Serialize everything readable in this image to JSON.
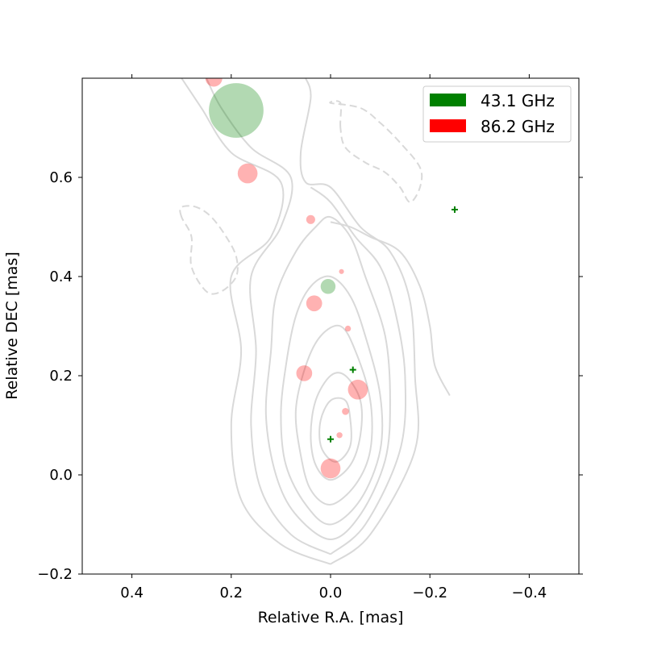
{
  "chart_data": {
    "type": "scatter",
    "title": "",
    "xlabel": "Relative R.A. [mas]",
    "ylabel": "Relative DEC [mas]",
    "xlim": [
      0.5,
      -0.5
    ],
    "ylim": [
      -0.2,
      0.8
    ],
    "xticks": [
      0.4,
      0.2,
      0.0,
      -0.2,
      -0.4
    ],
    "xtick_labels": [
      "0.4",
      "0.2",
      "0.0",
      "−0.2",
      "−0.4"
    ],
    "yticks": [
      -0.2,
      0.0,
      0.2,
      0.4,
      0.6
    ],
    "ytick_labels": [
      "−0.2",
      "0.0",
      "0.2",
      "0.4",
      "0.6"
    ],
    "grid": false,
    "legend_position": "top-right",
    "series": [
      {
        "name": "43.1 GHz",
        "color": "#008000",
        "points": [
          {
            "x": 0.19,
            "y": 0.735,
            "r": 0.055
          },
          {
            "x": 0.005,
            "y": 0.38,
            "r": 0.015
          },
          {
            "x": -0.045,
            "y": 0.212,
            "r": 0,
            "marker": "cross"
          },
          {
            "x": -0.25,
            "y": 0.535,
            "r": 0,
            "marker": "cross"
          },
          {
            "x": 0.0,
            "y": 0.072,
            "r": 0,
            "marker": "cross"
          }
        ]
      },
      {
        "name": "86.2 GHz",
        "color": "#ff0000",
        "points": [
          {
            "x": 0.235,
            "y": 0.8,
            "r": 0.017
          },
          {
            "x": 0.167,
            "y": 0.608,
            "r": 0.02
          },
          {
            "x": 0.04,
            "y": 0.515,
            "r": 0.009
          },
          {
            "x": -0.022,
            "y": 0.41,
            "r": 0.005
          },
          {
            "x": 0.033,
            "y": 0.346,
            "r": 0.016
          },
          {
            "x": -0.035,
            "y": 0.295,
            "r": 0.006
          },
          {
            "x": 0.053,
            "y": 0.205,
            "r": 0.016
          },
          {
            "x": -0.055,
            "y": 0.172,
            "r": 0.02
          },
          {
            "x": -0.03,
            "y": 0.128,
            "r": 0.007
          },
          {
            "x": -0.018,
            "y": 0.08,
            "r": 0.006
          },
          {
            "x": 0.0,
            "y": 0.013,
            "r": 0.02
          }
        ]
      }
    ],
    "contours": {
      "color": "#d9d9d9",
      "solid": [
        [
          [
            0.0,
            -0.18
          ],
          [
            0.1,
            -0.14
          ],
          [
            0.18,
            -0.05
          ],
          [
            0.2,
            0.1
          ],
          [
            0.18,
            0.25
          ],
          [
            0.2,
            0.4
          ],
          [
            0.12,
            0.48
          ],
          [
            0.1,
            0.59
          ],
          [
            0.2,
            0.65
          ],
          [
            0.26,
            0.74
          ],
          [
            0.3,
            0.8
          ]
        ],
        [
          [
            0.0,
            -0.18
          ],
          [
            -0.08,
            -0.12
          ],
          [
            -0.17,
            0.05
          ],
          [
            -0.17,
            0.2
          ],
          [
            -0.16,
            0.35
          ],
          [
            -0.12,
            0.45
          ],
          [
            -0.06,
            0.5
          ],
          [
            0.0,
            0.58
          ],
          [
            0.05,
            0.59
          ],
          [
            0.06,
            0.65
          ],
          [
            0.04,
            0.76
          ],
          [
            0.05,
            0.8
          ]
        ],
        [
          [
            0.0,
            -0.16
          ],
          [
            0.08,
            -0.12
          ],
          [
            0.14,
            -0.03
          ],
          [
            0.16,
            0.1
          ],
          [
            0.15,
            0.25
          ],
          [
            0.16,
            0.4
          ],
          [
            0.1,
            0.5
          ],
          [
            0.08,
            0.6
          ],
          [
            0.16,
            0.66
          ],
          [
            0.22,
            0.74
          ],
          [
            0.25,
            0.8
          ]
        ],
        [
          [
            0.0,
            -0.16
          ],
          [
            -0.07,
            -0.1
          ],
          [
            -0.14,
            0.05
          ],
          [
            -0.15,
            0.2
          ],
          [
            -0.13,
            0.33
          ],
          [
            -0.1,
            0.42
          ],
          [
            -0.05,
            0.48
          ],
          [
            0.0,
            0.55
          ],
          [
            0.04,
            0.58
          ]
        ],
        [
          [
            0.0,
            -0.13
          ],
          [
            0.07,
            -0.08
          ],
          [
            0.11,
            0.0
          ],
          [
            0.13,
            0.12
          ],
          [
            0.12,
            0.25
          ],
          [
            0.11,
            0.36
          ],
          [
            0.07,
            0.45
          ],
          [
            0.03,
            0.5
          ],
          [
            0.0,
            0.52
          ],
          [
            -0.04,
            0.48
          ],
          [
            -0.07,
            0.4
          ],
          [
            -0.11,
            0.28
          ],
          [
            -0.12,
            0.15
          ],
          [
            -0.11,
            0.03
          ],
          [
            -0.06,
            -0.08
          ],
          [
            0.0,
            -0.13
          ]
        ],
        [
          [
            0.0,
            -0.1
          ],
          [
            0.05,
            -0.06
          ],
          [
            0.09,
            0.02
          ],
          [
            0.1,
            0.12
          ],
          [
            0.09,
            0.22
          ],
          [
            0.07,
            0.32
          ],
          [
            0.04,
            0.38
          ],
          [
            0.0,
            0.4
          ],
          [
            -0.04,
            0.36
          ],
          [
            -0.07,
            0.28
          ],
          [
            -0.1,
            0.16
          ],
          [
            -0.1,
            0.05
          ],
          [
            -0.06,
            -0.05
          ],
          [
            0.0,
            -0.1
          ]
        ],
        [
          [
            0.0,
            -0.06
          ],
          [
            0.04,
            -0.03
          ],
          [
            0.06,
            0.04
          ],
          [
            0.07,
            0.13
          ],
          [
            0.05,
            0.22
          ],
          [
            0.02,
            0.28
          ],
          [
            -0.02,
            0.3
          ],
          [
            -0.05,
            0.25
          ],
          [
            -0.08,
            0.15
          ],
          [
            -0.08,
            0.05
          ],
          [
            -0.05,
            -0.02
          ],
          [
            0.0,
            -0.06
          ]
        ],
        [
          [
            0.0,
            -0.01
          ],
          [
            0.03,
            0.02
          ],
          [
            0.04,
            0.08
          ],
          [
            0.03,
            0.15
          ],
          [
            0.0,
            0.2
          ],
          [
            -0.03,
            0.2
          ],
          [
            -0.06,
            0.15
          ],
          [
            -0.06,
            0.08
          ],
          [
            -0.04,
            0.02
          ],
          [
            0.0,
            -0.01
          ]
        ],
        [
          [
            0.0,
            0.03
          ],
          [
            0.02,
            0.06
          ],
          [
            0.02,
            0.11
          ],
          [
            0.0,
            0.15
          ],
          [
            -0.03,
            0.15
          ],
          [
            -0.04,
            0.11
          ],
          [
            -0.04,
            0.06
          ],
          [
            -0.02,
            0.03
          ],
          [
            0.0,
            0.03
          ]
        ],
        [
          [
            0.0,
            0.51
          ],
          [
            -0.04,
            0.5
          ],
          [
            -0.08,
            0.48
          ],
          [
            -0.14,
            0.45
          ],
          [
            -0.18,
            0.38
          ],
          [
            -0.2,
            0.3
          ],
          [
            -0.21,
            0.22
          ],
          [
            -0.24,
            0.16
          ]
        ]
      ],
      "dashed": [
        [
          [
            0.3,
            0.52
          ],
          [
            0.3,
            0.54
          ],
          [
            0.27,
            0.54
          ],
          [
            0.24,
            0.52
          ],
          [
            0.21,
            0.48
          ],
          [
            0.19,
            0.44
          ],
          [
            0.19,
            0.4
          ],
          [
            0.22,
            0.37
          ],
          [
            0.25,
            0.37
          ],
          [
            0.28,
            0.42
          ],
          [
            0.28,
            0.48
          ],
          [
            0.3,
            0.52
          ]
        ],
        [
          [
            -0.02,
            0.7
          ],
          [
            -0.02,
            0.75
          ],
          [
            0.0,
            0.75
          ],
          [
            -0.06,
            0.74
          ],
          [
            -0.1,
            0.71
          ],
          [
            -0.14,
            0.67
          ],
          [
            -0.18,
            0.62
          ],
          [
            -0.18,
            0.58
          ],
          [
            -0.16,
            0.55
          ],
          [
            -0.14,
            0.58
          ],
          [
            -0.11,
            0.61
          ],
          [
            -0.07,
            0.63
          ],
          [
            -0.03,
            0.66
          ],
          [
            -0.02,
            0.7
          ]
        ]
      ]
    }
  }
}
